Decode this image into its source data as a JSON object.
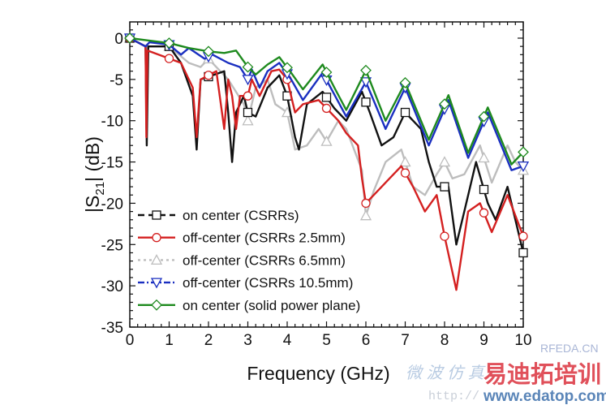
{
  "chart_data": {
    "type": "line",
    "title": "",
    "xlabel": "Frequency (GHz)",
    "ylabel_main": "|S",
    "ylabel_sub": "21",
    "ylabel_rest": "| (dB)",
    "xlim": [
      0,
      10
    ],
    "ylim": [
      -35,
      2
    ],
    "xticks": [
      0,
      1,
      2,
      3,
      4,
      5,
      6,
      7,
      8,
      9,
      10
    ],
    "yticks": [
      0,
      -5,
      -10,
      -15,
      -20,
      -25,
      -30,
      -35
    ],
    "grid": false,
    "legend_position": "bottom-left",
    "series": [
      {
        "name": "on center (CSRRs)",
        "color": "#111111",
        "dash": "8,5",
        "marker": "square",
        "x": [
          0,
          0.4,
          0.43,
          0.47,
          1,
          1.3,
          1.6,
          1.7,
          1.8,
          2.4,
          2.5,
          2.6,
          2.7,
          2.9,
          3,
          3.2,
          3.5,
          3.8,
          4,
          4.2,
          4.3,
          4.5,
          4.9,
          5.2,
          5.5,
          5.9,
          6.1,
          6.4,
          6.7,
          7,
          7.4,
          7.6,
          7.8,
          8.1,
          8.3,
          8.5,
          8.8,
          9.1,
          9.3,
          9.6,
          10
        ],
        "y": [
          0,
          -1,
          -13,
          -1,
          -1,
          -3,
          -7,
          -13.5,
          -5,
          -4,
          -9,
          -15,
          -9,
          -7,
          -9,
          -9.5,
          -6,
          -4.5,
          -7,
          -12,
          -13.5,
          -8,
          -6.5,
          -8.5,
          -10,
          -6.5,
          -9,
          -13,
          -12,
          -9,
          -11,
          -15,
          -18,
          -18,
          -25,
          -21,
          -15,
          -20,
          -22,
          -18,
          -26
        ]
      },
      {
        "name": "off-center (CSRRs 2.5mm)",
        "color": "#d42020",
        "dash": "",
        "marker": "circle",
        "x": [
          0,
          0.4,
          0.42,
          0.45,
          1.3,
          1.5,
          1.6,
          1.7,
          1.8,
          2.2,
          2.4,
          2.5,
          2.6,
          2.7,
          2.8,
          3,
          3.1,
          3.3,
          3.6,
          3.8,
          4,
          4.2,
          4.4,
          4.8,
          5.3,
          5.5,
          5.8,
          5.9,
          6,
          6.2,
          6.6,
          6.9,
          7.2,
          7.5,
          7.8,
          8,
          8.3,
          8.6,
          8.9,
          9.2,
          9.6,
          10
        ],
        "y": [
          0,
          -1,
          -12,
          -1.5,
          -3,
          -5,
          -6,
          -12,
          -5,
          -4,
          -11,
          -5,
          -7,
          -11,
          -7,
          -7,
          -5,
          -7,
          -4,
          -3.8,
          -5,
          -9,
          -8,
          -7.5,
          -10,
          -11.5,
          -13,
          -17,
          -20,
          -19,
          -17,
          -15.5,
          -18,
          -21,
          -19,
          -24,
          -30.5,
          -21,
          -20,
          -23.5,
          -19,
          -24
        ]
      },
      {
        "name": "off-center (CSRRs 6.5mm)",
        "color": "#bdbdbd",
        "dash": "3,4",
        "marker": "triangle-up",
        "x": [
          0,
          0.4,
          0.42,
          0.45,
          1,
          1.5,
          1.8,
          2,
          2.5,
          2.9,
          3,
          3.2,
          3.5,
          3.7,
          4,
          4.2,
          4.5,
          4.8,
          5,
          5.3,
          5.5,
          5.9,
          6,
          6.2,
          6.5,
          6.9,
          7.2,
          7.5,
          7.8,
          8,
          8.2,
          8.5,
          8.9,
          9.2,
          9.6,
          9.8,
          10
        ],
        "y": [
          0,
          -1,
          -11,
          -1,
          -1,
          -3,
          -3.5,
          -2.5,
          -5,
          -8,
          -10,
          -6,
          -5,
          -8,
          -9,
          -13.5,
          -13,
          -11,
          -12.5,
          -10,
          -11,
          -16,
          -21.5,
          -18.5,
          -15,
          -13.5,
          -18,
          -19,
          -16.5,
          -15,
          -17,
          -16.5,
          -13,
          -17.5,
          -13,
          -15,
          -16
        ]
      },
      {
        "name": "off-center (CSRRs 10.5mm)",
        "color": "#1a2fc0",
        "dash": "8,3,2,3",
        "marker": "triangle-down",
        "x": [
          0,
          0.4,
          0.5,
          1,
          1.3,
          1.5,
          1.9,
          2.1,
          2.5,
          2.8,
          3,
          3.1,
          3.3,
          3.5,
          3.8,
          4.1,
          4.4,
          4.9,
          5.5,
          6,
          6.5,
          7,
          7.6,
          8.1,
          8.6,
          9.1,
          9.7,
          10
        ],
        "y": [
          0,
          -1,
          -0.5,
          -0.8,
          -2,
          -1.2,
          -2.5,
          -2,
          -3,
          -3.5,
          -5,
          -3.8,
          -6,
          -4,
          -3,
          -5,
          -7.5,
          -4.2,
          -9.5,
          -5.3,
          -11,
          -6,
          -13,
          -7.5,
          -14.5,
          -9,
          -16,
          -15.5
        ]
      },
      {
        "name": "on center (solid power plane)",
        "color": "#1e8a1e",
        "dash": "",
        "marker": "diamond",
        "x": [
          0,
          0.5,
          1,
          1.5,
          2,
          2.4,
          2.7,
          3,
          3.2,
          3.5,
          3.8,
          4.1,
          4.4,
          4.9,
          5.2,
          5.5,
          6,
          6.5,
          7,
          7.6,
          8.1,
          8.6,
          9.1,
          9.7,
          10
        ],
        "y": [
          0,
          -0.3,
          -0.6,
          -1.2,
          -1.6,
          -1.8,
          -1.5,
          -3.5,
          -4.4,
          -3.2,
          -2.3,
          -4.2,
          -6.2,
          -3.2,
          -6,
          -8.7,
          -3.9,
          -10,
          -5.4,
          -12.3,
          -6.9,
          -13.9,
          -8.4,
          -15.3,
          -13.8
        ]
      }
    ]
  },
  "watermark": {
    "site_code": "RFEDA.CN",
    "cn_faint": "微 波 仿 真",
    "cn_brand": "易迪拓培训",
    "url_prefix": "http://",
    "url": "www.edatop.com"
  }
}
